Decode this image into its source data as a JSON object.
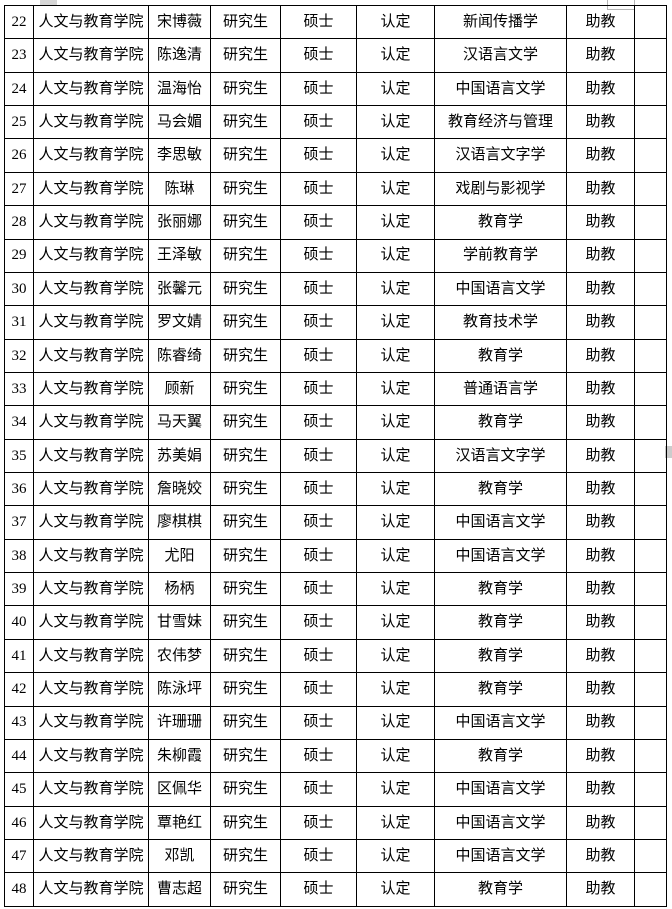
{
  "colors": {
    "table_border": "#000000",
    "text": "#000000",
    "background": "#ffffff",
    "artifact_gray": "#d6d6d6"
  },
  "table": {
    "column_keys": [
      "index",
      "college",
      "name",
      "student_type",
      "degree",
      "status",
      "major",
      "title",
      "blank"
    ],
    "rows": [
      [
        "22",
        "人文与教育学院",
        "宋博薇",
        "研究生",
        "硕士",
        "认定",
        "新闻传播学",
        "助教",
        ""
      ],
      [
        "23",
        "人文与教育学院",
        "陈逸清",
        "研究生",
        "硕士",
        "认定",
        "汉语言文学",
        "助教",
        ""
      ],
      [
        "24",
        "人文与教育学院",
        "温海怡",
        "研究生",
        "硕士",
        "认定",
        "中国语言文学",
        "助教",
        ""
      ],
      [
        "25",
        "人文与教育学院",
        "马会媚",
        "研究生",
        "硕士",
        "认定",
        "教育经济与管理",
        "助教",
        ""
      ],
      [
        "26",
        "人文与教育学院",
        "李思敏",
        "研究生",
        "硕士",
        "认定",
        "汉语言文字学",
        "助教",
        ""
      ],
      [
        "27",
        "人文与教育学院",
        "陈琳",
        "研究生",
        "硕士",
        "认定",
        "戏剧与影视学",
        "助教",
        ""
      ],
      [
        "28",
        "人文与教育学院",
        "张丽娜",
        "研究生",
        "硕士",
        "认定",
        "教育学",
        "助教",
        ""
      ],
      [
        "29",
        "人文与教育学院",
        "王泽敏",
        "研究生",
        "硕士",
        "认定",
        "学前教育学",
        "助教",
        ""
      ],
      [
        "30",
        "人文与教育学院",
        "张馨元",
        "研究生",
        "硕士",
        "认定",
        "中国语言文学",
        "助教",
        ""
      ],
      [
        "31",
        "人文与教育学院",
        "罗文婧",
        "研究生",
        "硕士",
        "认定",
        "教育技术学",
        "助教",
        ""
      ],
      [
        "32",
        "人文与教育学院",
        "陈睿绮",
        "研究生",
        "硕士",
        "认定",
        "教育学",
        "助教",
        ""
      ],
      [
        "33",
        "人文与教育学院",
        "顾新",
        "研究生",
        "硕士",
        "认定",
        "普通语言学",
        "助教",
        ""
      ],
      [
        "34",
        "人文与教育学院",
        "马天翼",
        "研究生",
        "硕士",
        "认定",
        "教育学",
        "助教",
        ""
      ],
      [
        "35",
        "人文与教育学院",
        "苏美娟",
        "研究生",
        "硕士",
        "认定",
        "汉语言文字学",
        "助教",
        ""
      ],
      [
        "36",
        "人文与教育学院",
        "詹晓姣",
        "研究生",
        "硕士",
        "认定",
        "教育学",
        "助教",
        ""
      ],
      [
        "37",
        "人文与教育学院",
        "廖棋棋",
        "研究生",
        "硕士",
        "认定",
        "中国语言文学",
        "助教",
        ""
      ],
      [
        "38",
        "人文与教育学院",
        "尤阳",
        "研究生",
        "硕士",
        "认定",
        "中国语言文学",
        "助教",
        ""
      ],
      [
        "39",
        "人文与教育学院",
        "杨柄",
        "研究生",
        "硕士",
        "认定",
        "教育学",
        "助教",
        ""
      ],
      [
        "40",
        "人文与教育学院",
        "甘雪妹",
        "研究生",
        "硕士",
        "认定",
        "教育学",
        "助教",
        ""
      ],
      [
        "41",
        "人文与教育学院",
        "农伟梦",
        "研究生",
        "硕士",
        "认定",
        "教育学",
        "助教",
        ""
      ],
      [
        "42",
        "人文与教育学院",
        "陈泳坪",
        "研究生",
        "硕士",
        "认定",
        "教育学",
        "助教",
        ""
      ],
      [
        "43",
        "人文与教育学院",
        "许珊珊",
        "研究生",
        "硕士",
        "认定",
        "中国语言文学",
        "助教",
        ""
      ],
      [
        "44",
        "人文与教育学院",
        "朱柳霞",
        "研究生",
        "硕士",
        "认定",
        "教育学",
        "助教",
        ""
      ],
      [
        "45",
        "人文与教育学院",
        "区佩华",
        "研究生",
        "硕士",
        "认定",
        "中国语言文学",
        "助教",
        ""
      ],
      [
        "46",
        "人文与教育学院",
        "覃艳红",
        "研究生",
        "硕士",
        "认定",
        "中国语言文学",
        "助教",
        ""
      ],
      [
        "47",
        "人文与教育学院",
        "邓凯",
        "研究生",
        "硕士",
        "认定",
        "中国语言文学",
        "助教",
        ""
      ],
      [
        "48",
        "人文与教育学院",
        "曹志超",
        "研究生",
        "硕士",
        "认定",
        "教育学",
        "助教",
        ""
      ]
    ]
  }
}
